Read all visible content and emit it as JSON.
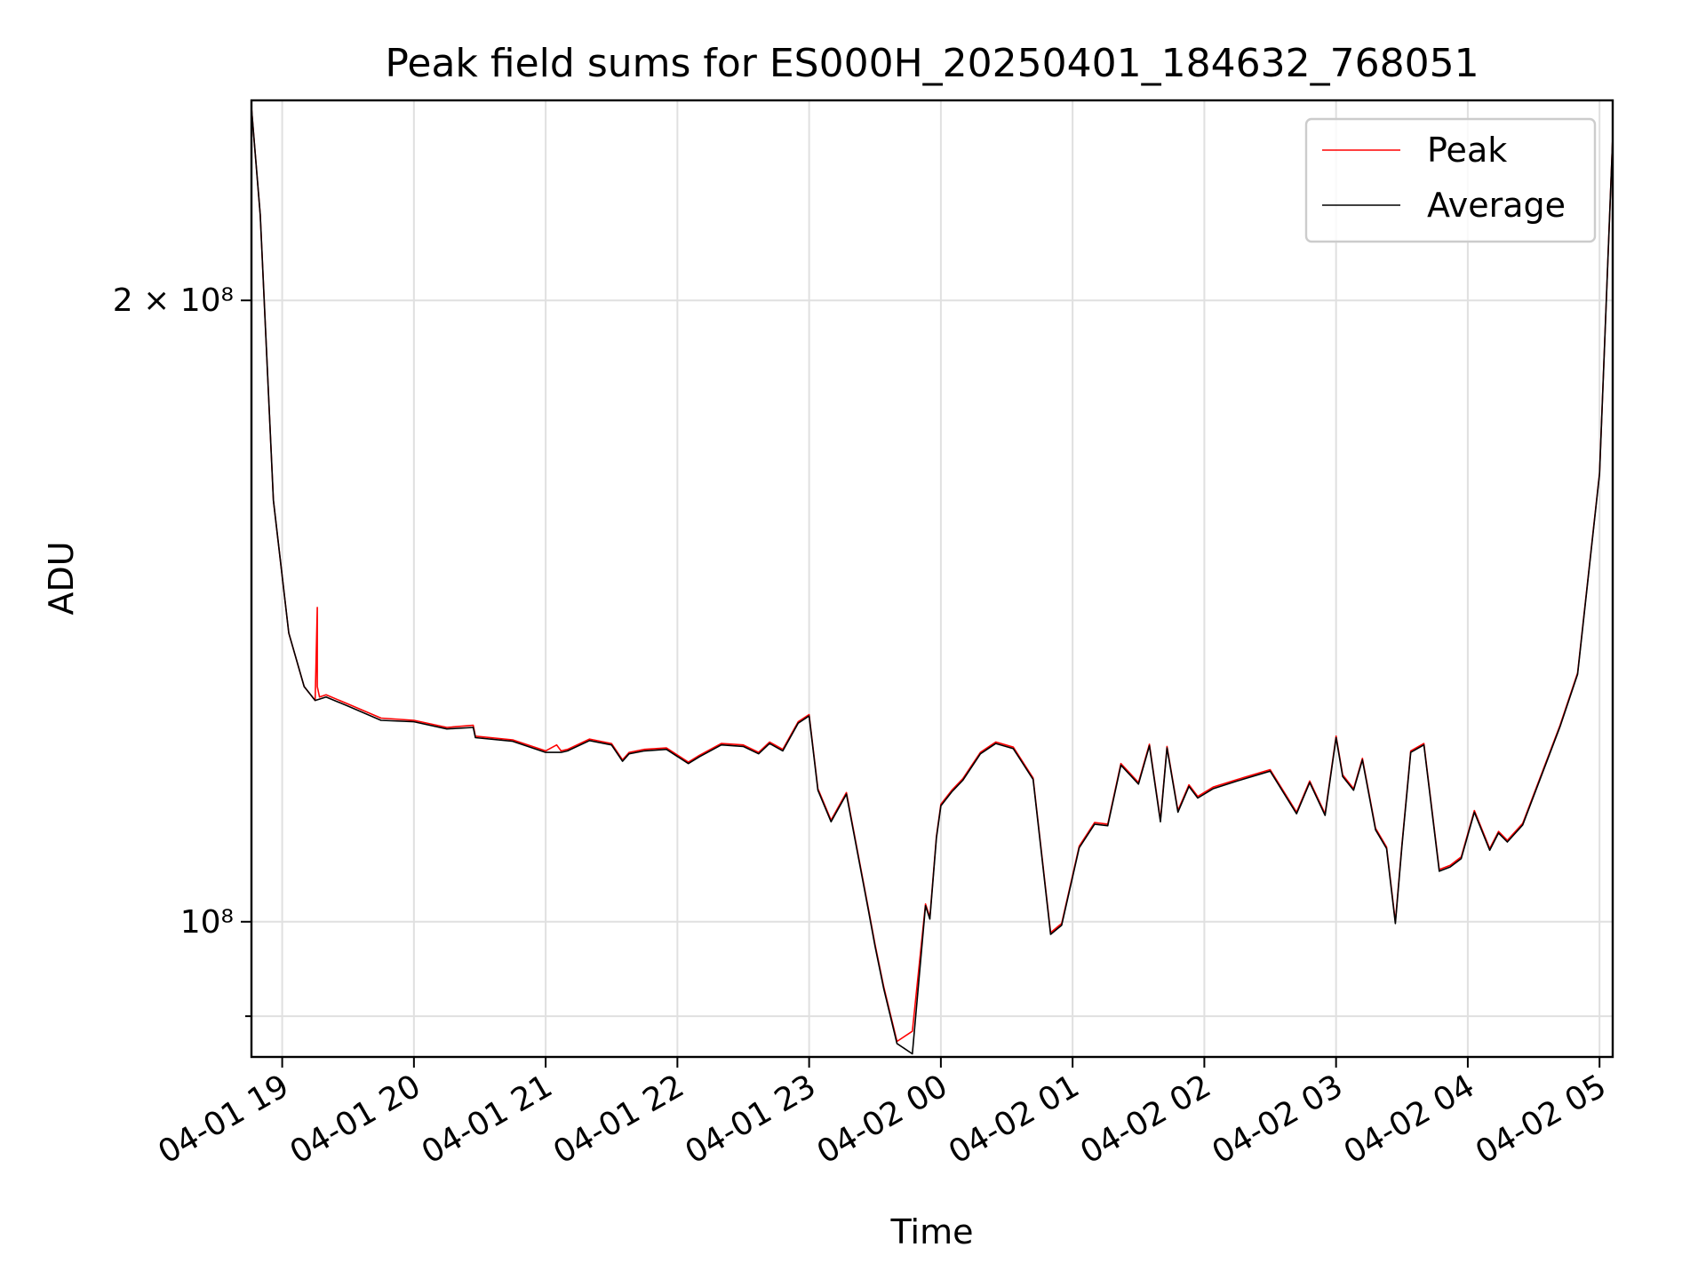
{
  "chart_data": {
    "type": "line",
    "title": "Peak field sums for ES000H_20250401_184632_768051",
    "xlabel": "Time",
    "ylabel": "ADU",
    "y_scale": "log",
    "ylim": [
      86000000,
      250000000
    ],
    "xlim": [
      "2025-04-01 18:46",
      "2025-04-02 05:06"
    ],
    "grid": true,
    "legend_position": "top-right",
    "x_ticks": [
      "04-01 19",
      "04-01 20",
      "04-01 21",
      "04-01 22",
      "04-01 23",
      "04-02 00",
      "04-02 01",
      "04-02 02",
      "04-02 03",
      "04-02 04",
      "04-02 05"
    ],
    "x_tick_times": [
      "2025-04-01 19:00",
      "2025-04-01 20:00",
      "2025-04-01 21:00",
      "2025-04-01 22:00",
      "2025-04-01 23:00",
      "2025-04-02 00:00",
      "2025-04-02 01:00",
      "2025-04-02 02:00",
      "2025-04-02 03:00",
      "2025-04-02 04:00",
      "2025-04-02 05:00"
    ],
    "y_ticks": [
      {
        "value": 200000000,
        "label": "2 × 10⁸",
        "major": true
      },
      {
        "value": 100000000,
        "label": "10⁸",
        "major": true
      },
      {
        "value": 90000000,
        "label": "",
        "major": false
      }
    ],
    "series": [
      {
        "name": "Peak",
        "color": "#ff0000",
        "x": [
          "2025-04-01 18:46",
          "2025-04-01 18:50",
          "2025-04-01 18:56",
          "2025-04-01 19:03",
          "2025-04-01 19:10",
          "2025-04-01 19:15",
          "2025-04-01 19:16",
          "2025-04-01 19:16",
          "2025-04-01 19:17",
          "2025-04-01 19:20",
          "2025-04-01 19:30",
          "2025-04-01 19:45",
          "2025-04-01 20:00",
          "2025-04-01 20:15",
          "2025-04-01 20:27",
          "2025-04-01 20:28",
          "2025-04-01 20:45",
          "2025-04-01 21:00",
          "2025-04-01 21:05",
          "2025-04-01 21:07",
          "2025-04-01 21:10",
          "2025-04-01 21:20",
          "2025-04-01 21:30",
          "2025-04-01 21:35",
          "2025-04-01 21:38",
          "2025-04-01 21:45",
          "2025-04-01 21:55",
          "2025-04-01 22:05",
          "2025-04-01 22:10",
          "2025-04-01 22:20",
          "2025-04-01 22:30",
          "2025-04-01 22:37",
          "2025-04-01 22:42",
          "2025-04-01 22:48",
          "2025-04-01 22:55",
          "2025-04-01 23:00",
          "2025-04-01 23:04",
          "2025-04-01 23:10",
          "2025-04-01 23:17",
          "2025-04-01 23:27",
          "2025-04-01 23:30",
          "2025-04-01 23:34",
          "2025-04-01 23:40",
          "2025-04-01 23:47",
          "2025-04-01 23:53",
          "2025-04-01 23:55",
          "2025-04-01 23:58",
          "2025-04-02 00:00",
          "2025-04-02 00:05",
          "2025-04-02 00:10",
          "2025-04-02 00:18",
          "2025-04-02 00:25",
          "2025-04-02 00:33",
          "2025-04-02 00:42",
          "2025-04-02 00:50",
          "2025-04-02 00:55",
          "2025-04-02 01:03",
          "2025-04-02 01:10",
          "2025-04-02 01:16",
          "2025-04-02 01:22",
          "2025-04-02 01:30",
          "2025-04-02 01:35",
          "2025-04-02 01:40",
          "2025-04-02 01:43",
          "2025-04-02 01:48",
          "2025-04-02 01:53",
          "2025-04-02 01:57",
          "2025-04-02 02:04",
          "2025-04-02 02:15",
          "2025-04-02 02:30",
          "2025-04-02 02:42",
          "2025-04-02 02:48",
          "2025-04-02 02:55",
          "2025-04-02 03:00",
          "2025-04-02 03:03",
          "2025-04-02 03:08",
          "2025-04-02 03:12",
          "2025-04-02 03:18",
          "2025-04-02 03:23",
          "2025-04-02 03:27",
          "2025-04-02 03:30",
          "2025-04-02 03:34",
          "2025-04-02 03:40",
          "2025-04-02 03:47",
          "2025-04-02 03:52",
          "2025-04-02 03:57",
          "2025-04-02 04:03",
          "2025-04-02 04:10",
          "2025-04-02 04:14",
          "2025-04-02 04:18",
          "2025-04-02 04:25",
          "2025-04-02 04:33",
          "2025-04-02 04:42",
          "2025-04-02 04:50",
          "2025-04-02 05:00",
          "2025-04-02 05:06"
        ],
        "y": [
          248000000,
          220000000,
          160000000,
          138000000,
          130000000,
          128000000,
          142000000,
          130000000,
          128500000,
          128800000,
          127500000,
          125500000,
          125200000,
          124200000,
          124500000,
          123000000,
          122500000,
          121000000,
          121800000,
          121000000,
          121200000,
          122600000,
          122000000,
          119800000,
          120800000,
          121200000,
          121400000,
          119500000,
          120400000,
          122000000,
          121800000,
          120800000,
          122200000,
          121200000,
          125000000,
          126000000,
          116000000,
          112000000,
          115500000,
          101500000,
          97500000,
          93000000,
          87500000,
          88500000,
          102000000,
          100500000,
          110000000,
          114000000,
          115800000,
          117300000,
          120800000,
          122200000,
          121500000,
          117400000,
          98800000,
          99800000,
          108800000,
          111700000,
          111500000,
          119300000,
          116800000,
          121900000,
          112000000,
          121600000,
          113200000,
          116500000,
          115000000,
          116200000,
          117200000,
          118500000,
          113000000,
          117000000,
          112800000,
          123000000,
          117800000,
          116000000,
          120000000,
          111000000,
          108700000,
          100000000,
          109000000,
          121000000,
          122000000,
          106000000,
          106500000,
          107500000,
          113200000,
          108500000,
          110600000,
          109500000,
          111600000,
          117500000,
          124500000,
          132000000,
          165000000,
          240000000
        ]
      },
      {
        "name": "Average",
        "color": "#000000",
        "x": [
          "2025-04-01 18:46",
          "2025-04-01 18:50",
          "2025-04-01 18:56",
          "2025-04-01 19:03",
          "2025-04-01 19:10",
          "2025-04-01 19:15",
          "2025-04-01 19:17",
          "2025-04-01 19:20",
          "2025-04-01 19:30",
          "2025-04-01 19:45",
          "2025-04-01 20:00",
          "2025-04-01 20:15",
          "2025-04-01 20:27",
          "2025-04-01 20:28",
          "2025-04-01 20:45",
          "2025-04-01 21:00",
          "2025-04-01 21:07",
          "2025-04-01 21:10",
          "2025-04-01 21:20",
          "2025-04-01 21:30",
          "2025-04-01 21:35",
          "2025-04-01 21:38",
          "2025-04-01 21:45",
          "2025-04-01 21:55",
          "2025-04-01 22:05",
          "2025-04-01 22:10",
          "2025-04-01 22:20",
          "2025-04-01 22:30",
          "2025-04-01 22:37",
          "2025-04-01 22:42",
          "2025-04-01 22:48",
          "2025-04-01 22:55",
          "2025-04-01 23:00",
          "2025-04-01 23:04",
          "2025-04-01 23:10",
          "2025-04-01 23:17",
          "2025-04-01 23:27",
          "2025-04-01 23:30",
          "2025-04-01 23:34",
          "2025-04-01 23:40",
          "2025-04-01 23:47",
          "2025-04-01 23:53",
          "2025-04-01 23:55",
          "2025-04-01 23:58",
          "2025-04-02 00:00",
          "2025-04-02 00:05",
          "2025-04-02 00:10",
          "2025-04-02 00:18",
          "2025-04-02 00:25",
          "2025-04-02 00:33",
          "2025-04-02 00:42",
          "2025-04-02 00:50",
          "2025-04-02 00:55",
          "2025-04-02 01:03",
          "2025-04-02 01:10",
          "2025-04-02 01:16",
          "2025-04-02 01:22",
          "2025-04-02 01:30",
          "2025-04-02 01:35",
          "2025-04-02 01:40",
          "2025-04-02 01:43",
          "2025-04-02 01:48",
          "2025-04-02 01:53",
          "2025-04-02 01:57",
          "2025-04-02 02:04",
          "2025-04-02 02:15",
          "2025-04-02 02:30",
          "2025-04-02 02:42",
          "2025-04-02 02:48",
          "2025-04-02 02:55",
          "2025-04-02 03:00",
          "2025-04-02 03:03",
          "2025-04-02 03:08",
          "2025-04-02 03:12",
          "2025-04-02 03:18",
          "2025-04-02 03:23",
          "2025-04-02 03:27",
          "2025-04-02 03:30",
          "2025-04-02 03:34",
          "2025-04-02 03:40",
          "2025-04-02 03:47",
          "2025-04-02 03:52",
          "2025-04-02 03:57",
          "2025-04-02 04:03",
          "2025-04-02 04:10",
          "2025-04-02 04:14",
          "2025-04-02 04:18",
          "2025-04-02 04:25",
          "2025-04-02 04:33",
          "2025-04-02 04:42",
          "2025-04-02 04:50",
          "2025-04-02 05:00",
          "2025-04-02 05:06"
        ],
        "y": [
          248000000,
          220000000,
          160000000,
          138000000,
          130000000,
          128000000,
          128200000,
          128500000,
          127200000,
          125200000,
          125000000,
          124000000,
          124200000,
          122800000,
          122300000,
          120800000,
          120800000,
          121000000,
          122400000,
          121800000,
          119600000,
          120600000,
          121000000,
          121200000,
          119300000,
          120200000,
          121800000,
          121600000,
          120600000,
          122000000,
          121000000,
          124800000,
          125800000,
          115800000,
          111800000,
          115300000,
          101300000,
          97300000,
          92800000,
          87300000,
          86300000,
          101800000,
          100300000,
          109800000,
          113800000,
          115600000,
          117100000,
          120600000,
          122000000,
          121300000,
          117200000,
          98600000,
          99600000,
          108600000,
          111500000,
          111300000,
          119100000,
          116600000,
          121700000,
          111800000,
          121400000,
          113000000,
          116300000,
          114800000,
          116000000,
          117000000,
          118300000,
          112800000,
          116800000,
          112600000,
          122800000,
          117600000,
          115800000,
          119800000,
          110800000,
          108500000,
          99800000,
          108800000,
          120800000,
          121800000,
          105800000,
          106300000,
          107300000,
          113000000,
          108300000,
          110400000,
          109300000,
          111400000,
          117300000,
          124300000,
          131800000,
          164800000,
          240000000
        ]
      }
    ]
  }
}
